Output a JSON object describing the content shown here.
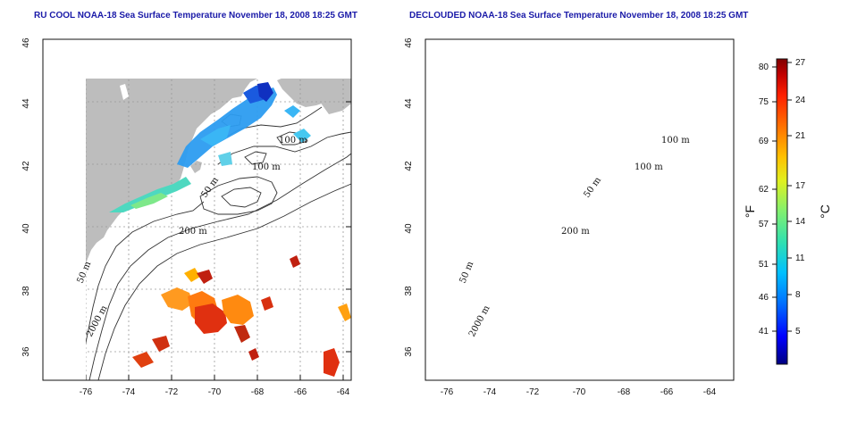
{
  "panels": [
    {
      "title": "RU COOL NOAA-18 Sea Surface Temperature November 18, 2008 18:25 GMT",
      "contour_labels": [
        "100 m",
        "100 m",
        "50 m",
        "200 m",
        "50 m",
        "2000 m"
      ]
    },
    {
      "title": "DECLOUDED NOAA-18 Sea Surface Temperature November 18, 2008 18:25 GMT",
      "contour_labels": [
        "100 m",
        "100 m",
        "50 m",
        "200 m",
        "50 m",
        "2000 m"
      ]
    }
  ],
  "axes": {
    "lon_ticks": [
      "-76",
      "-74",
      "-72",
      "-70",
      "-68",
      "-66",
      "-64"
    ],
    "lat_ticks": [
      "46",
      "44",
      "42",
      "40",
      "38",
      "36"
    ],
    "lon_range": [
      -77.2,
      -62.8
    ],
    "lat_range": [
      35,
      46
    ]
  },
  "colorbar": {
    "fahrenheit_label": "°F",
    "celsius_label": "°C",
    "fahrenheit_ticks": [
      "80",
      "75",
      "69",
      "62",
      "57",
      "51",
      "46",
      "41"
    ],
    "celsius_ticks": [
      "27",
      "24",
      "21",
      "17",
      "14",
      "11",
      "8",
      "5"
    ],
    "colors": [
      "#000080",
      "#0000ff",
      "#0070ff",
      "#00c0ff",
      "#30e0b0",
      "#80f070",
      "#e0f020",
      "#ffc000",
      "#ff7000",
      "#ff2000",
      "#c00000",
      "#800000"
    ]
  },
  "colors": {
    "land": "#bdbdbd",
    "ocean": "#ffffff",
    "grid": "#9a9a9a",
    "title": "#1a1aa8"
  }
}
